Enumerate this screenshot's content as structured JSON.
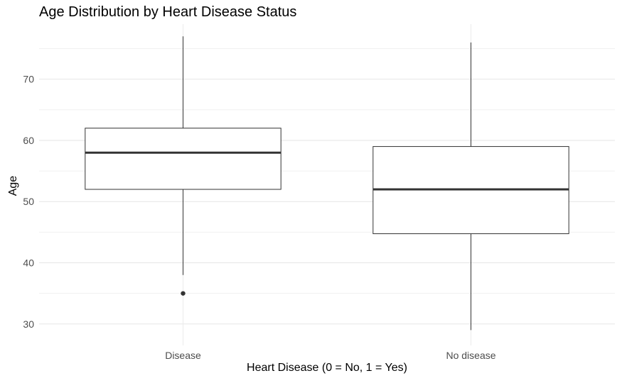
{
  "chart_data": {
    "type": "box",
    "title": "Age Distribution by Heart Disease Status",
    "xlabel": "Heart Disease (0 = No, 1 = Yes)",
    "ylabel": "Age",
    "ylim": [
      26.5,
      79
    ],
    "y_ticks": [
      30,
      40,
      50,
      60,
      70
    ],
    "grid": true,
    "categories": [
      "Disease",
      "No disease"
    ],
    "boxes": [
      {
        "category": "Disease",
        "min": 38,
        "q1": 52,
        "median": 58,
        "q3": 62,
        "max": 77,
        "outliers": [
          35
        ]
      },
      {
        "category": "No disease",
        "min": 29,
        "q1": 44.75,
        "median": 52,
        "q3": 59,
        "max": 76,
        "outliers": []
      }
    ]
  }
}
